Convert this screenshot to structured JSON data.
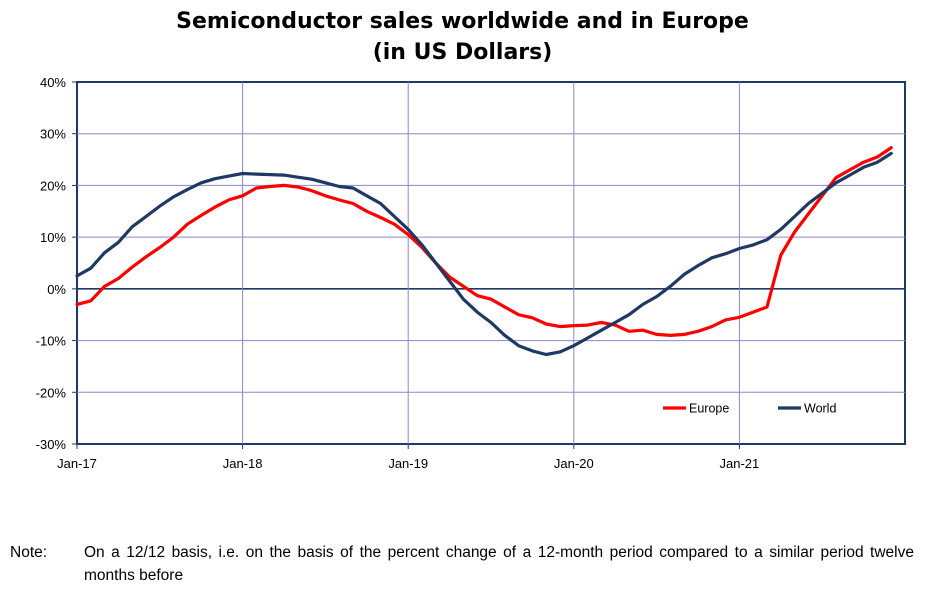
{
  "title_line1": "Semiconductor sales worldwide and in Europe",
  "title_line2": "(in US Dollars)",
  "chart_data": {
    "type": "line",
    "x": [
      "2017-01",
      "2017-02",
      "2017-03",
      "2017-04",
      "2017-05",
      "2017-06",
      "2017-07",
      "2017-08",
      "2017-09",
      "2017-10",
      "2017-11",
      "2017-12",
      "2018-01",
      "2018-02",
      "2018-03",
      "2018-04",
      "2018-05",
      "2018-06",
      "2018-07",
      "2018-08",
      "2018-09",
      "2018-10",
      "2018-11",
      "2018-12",
      "2019-01",
      "2019-02",
      "2019-03",
      "2019-04",
      "2019-05",
      "2019-06",
      "2019-07",
      "2019-08",
      "2019-09",
      "2019-10",
      "2019-11",
      "2019-12",
      "2020-01",
      "2020-02",
      "2020-03",
      "2020-04",
      "2020-05",
      "2020-06",
      "2020-07",
      "2020-08",
      "2020-09",
      "2020-10",
      "2020-11",
      "2020-12",
      "2021-01",
      "2021-02",
      "2021-03",
      "2021-04",
      "2021-05",
      "2021-06",
      "2021-07",
      "2021-08",
      "2021-09",
      "2021-10",
      "2021-11",
      "2021-12"
    ],
    "series": [
      {
        "name": "Europe",
        "color": "#ff0000",
        "values": [
          -3,
          -2.3,
          0.5,
          2,
          4.2,
          6.2,
          8,
          10,
          12.5,
          14.2,
          15.8,
          17.2,
          18,
          19.5,
          19.8,
          20,
          19.7,
          19,
          18,
          17.2,
          16.5,
          15,
          13.8,
          12.5,
          10.5,
          8,
          5,
          2.3,
          0.5,
          -1.3,
          -2,
          -3.5,
          -5,
          -5.6,
          -6.8,
          -7.3,
          -7.1,
          -7,
          -6.5,
          -7,
          -8.2,
          -8,
          -8.8,
          -9,
          -8.8,
          -8.2,
          -7.3,
          -6,
          -5.5,
          -4.5,
          -3.5,
          6.5,
          11,
          14.5,
          18,
          21.5,
          23,
          24.5,
          25.5,
          27.3
        ]
      },
      {
        "name": "World",
        "color": "#1f3864",
        "values": [
          2.5,
          4,
          7,
          9,
          12,
          14,
          16,
          17.8,
          19.2,
          20.5,
          21.3,
          21.8,
          22.3,
          22.2,
          22.1,
          22,
          21.6,
          21.2,
          20.5,
          19.8,
          19.5,
          18,
          16.5,
          14,
          11.5,
          8.5,
          5,
          1.5,
          -2,
          -4.5,
          -6.5,
          -9,
          -11,
          -12,
          -12.7,
          -12.2,
          -11,
          -9.5,
          -8,
          -6.5,
          -5,
          -3,
          -1.5,
          0.5,
          2.8,
          4.5,
          6,
          6.8,
          7.8,
          8.5,
          9.5,
          11.5,
          14,
          16.5,
          18.5,
          20.5,
          22,
          23.5,
          24.5,
          26.2
        ]
      }
    ],
    "x_ticks": [
      "Jan-17",
      "Jan-18",
      "Jan-19",
      "Jan-20",
      "Jan-21"
    ],
    "y_ticks": [
      "40%",
      "30%",
      "20%",
      "10%",
      "0%",
      "-10%",
      "-20%",
      "-30%"
    ],
    "ylim": [
      -30,
      40
    ],
    "grid": true,
    "legend_position": "bottom-right"
  },
  "note": {
    "label": "Note:",
    "text": "On a 12/12 basis, i.e. on the basis of the percent change of a 12-month period compared to a similar period twelve months before"
  }
}
